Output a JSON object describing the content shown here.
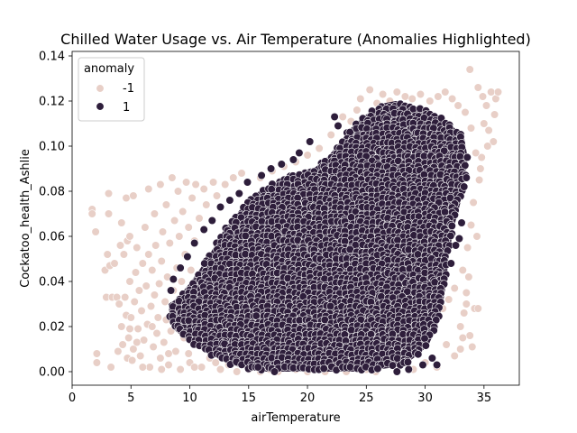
{
  "chart_data": {
    "type": "scatter",
    "title": "Chilled Water Usage vs. Air Temperature (Anomalies Highlighted)",
    "xlabel": "airTemperature",
    "ylabel": "Cockatoo_health_Ashlie",
    "xlim": [
      0,
      38
    ],
    "ylim": [
      -0.006,
      0.142
    ],
    "xticks": [
      0,
      5,
      10,
      15,
      20,
      25,
      30,
      35
    ],
    "yticks": [
      0.0,
      0.02,
      0.04,
      0.06,
      0.08,
      0.1,
      0.12,
      0.14
    ],
    "xtick_labels": [
      "0",
      "5",
      "10",
      "15",
      "20",
      "25",
      "30",
      "35"
    ],
    "ytick_labels": [
      "0.00",
      "0.02",
      "0.04",
      "0.06",
      "0.08",
      "0.10",
      "0.12",
      "0.14"
    ],
    "legend": {
      "title": "anomaly",
      "placement": "top-left",
      "entries": [
        {
          "label": "-1",
          "color": "#e8cfc7"
        },
        {
          "label": "1",
          "color": "#2e1e3b"
        }
      ]
    },
    "series": [
      {
        "name": "-1",
        "color": "#e8cfc7",
        "points": [
          [
            1.7,
            0.072
          ],
          [
            1.7,
            0.07
          ],
          [
            2.0,
            0.062
          ],
          [
            2.1,
            0.008
          ],
          [
            2.1,
            0.004
          ],
          [
            2.8,
            0.045
          ],
          [
            2.9,
            0.033
          ],
          [
            3.0,
            0.052
          ],
          [
            3.1,
            0.079
          ],
          [
            3.1,
            0.07
          ],
          [
            3.2,
            0.047
          ],
          [
            3.3,
            0.002
          ],
          [
            3.4,
            0.033
          ],
          [
            3.6,
            0.048
          ],
          [
            3.8,
            0.033
          ],
          [
            3.9,
            0.009
          ],
          [
            4.0,
            0.03
          ],
          [
            4.1,
            0.056
          ],
          [
            4.2,
            0.066
          ],
          [
            4.2,
            0.02
          ],
          [
            4.3,
            0.012
          ],
          [
            4.4,
            0.052
          ],
          [
            4.5,
            0.033
          ],
          [
            4.6,
            0.025
          ],
          [
            4.6,
            0.077
          ],
          [
            4.7,
            0.058
          ],
          [
            4.7,
            0.006
          ],
          [
            4.8,
            0.015
          ],
          [
            4.9,
            0.04
          ],
          [
            4.9,
            0.06
          ],
          [
            5.0,
            0.024
          ],
          [
            5.1,
            0.005
          ],
          [
            5.2,
            0.01
          ],
          [
            5.2,
            0.078
          ],
          [
            5.3,
            0.031
          ],
          [
            5.4,
            0.044
          ],
          [
            5.5,
            0.055
          ],
          [
            5.6,
            0.019
          ],
          [
            5.7,
            0.036
          ],
          [
            5.8,
            0.007
          ],
          [
            5.9,
            0.027
          ],
          [
            6.0,
            0.048
          ],
          [
            6.1,
            0.014
          ],
          [
            6.2,
            0.064
          ],
          [
            6.3,
            0.038
          ],
          [
            6.4,
            0.021
          ],
          [
            6.5,
            0.052
          ],
          [
            6.5,
            0.081
          ],
          [
            6.6,
            0.002
          ],
          [
            6.7,
            0.029
          ],
          [
            6.8,
            0.045
          ],
          [
            6.9,
            0.011
          ],
          [
            7.0,
            0.07
          ],
          [
            7.0,
            0.034
          ],
          [
            7.1,
            0.056
          ],
          [
            7.2,
            0.017
          ],
          [
            7.3,
            0.024
          ],
          [
            7.4,
            0.039
          ],
          [
            7.5,
            0.083
          ],
          [
            7.5,
            0.006
          ],
          [
            7.6,
            0.049
          ],
          [
            7.7,
            0.062
          ],
          [
            7.8,
            0.013
          ],
          [
            7.9,
            0.031
          ],
          [
            8.0,
            0.074
          ],
          [
            8.0,
            0.023
          ],
          [
            8.1,
            0.042
          ],
          [
            8.2,
            0.003
          ],
          [
            8.3,
            0.057
          ],
          [
            8.4,
            0.018
          ],
          [
            8.5,
            0.086
          ],
          [
            8.6,
            0.036
          ],
          [
            8.7,
            0.067
          ],
          [
            8.8,
            0.009
          ],
          [
            8.9,
            0.046
          ],
          [
            9.0,
            0.08
          ],
          [
            9.0,
            0.026
          ],
          [
            9.1,
            0.06
          ],
          [
            9.2,
            0.001
          ],
          [
            9.3,
            0.04
          ],
          [
            9.4,
            0.071
          ],
          [
            9.5,
            0.015
          ],
          [
            9.6,
            0.052
          ],
          [
            9.7,
            0.084
          ],
          [
            9.8,
            0.03
          ],
          [
            9.9,
            0.064
          ],
          [
            10.0,
            0.004
          ],
          [
            10.1,
            0.045
          ],
          [
            10.2,
            0.077
          ],
          [
            10.3,
            0.02
          ],
          [
            10.4,
            0.058
          ],
          [
            10.5,
            0.083
          ],
          [
            10.6,
            0.035
          ],
          [
            10.8,
            0.068
          ],
          [
            11.0,
            0.002
          ],
          [
            11.2,
            0.081
          ],
          [
            11.4,
            0.074
          ],
          [
            11.7,
            0.006
          ],
          [
            12.0,
            0.084
          ],
          [
            12.3,
            0.078
          ],
          [
            12.6,
            0.001
          ],
          [
            13.0,
            0.083
          ],
          [
            13.3,
            0.003
          ],
          [
            13.7,
            0.086
          ],
          [
            14.0,
            0.0
          ],
          [
            14.4,
            0.088
          ],
          [
            15.0,
            0.001
          ],
          [
            15.6,
            0.002
          ],
          [
            16.0,
            0.0
          ],
          [
            16.8,
            0.001
          ],
          [
            17.5,
            0.0
          ],
          [
            18.2,
            0.002
          ],
          [
            19.0,
            0.001
          ],
          [
            20.0,
            0.0
          ],
          [
            20.8,
            0.001
          ],
          [
            21.5,
            0.0
          ],
          [
            22.5,
            0.001
          ],
          [
            23.3,
            0.0
          ],
          [
            24.0,
            0.002
          ],
          [
            25.0,
            0.001
          ],
          [
            25.8,
            0.0
          ],
          [
            26.5,
            0.003
          ],
          [
            27.3,
            0.006
          ],
          [
            28.0,
            0.01
          ],
          [
            28.7,
            0.014
          ],
          [
            29.5,
            0.018
          ],
          [
            30.2,
            0.021
          ],
          [
            30.8,
            0.025
          ],
          [
            31.5,
            0.028
          ],
          [
            32.0,
            0.032
          ],
          [
            32.5,
            0.037
          ],
          [
            33.0,
            0.02
          ],
          [
            33.2,
            0.045
          ],
          [
            33.5,
            0.03
          ],
          [
            33.8,
            0.016
          ],
          [
            34.0,
            0.011
          ],
          [
            34.2,
            0.028
          ],
          [
            34.4,
            0.06
          ],
          [
            34.6,
            0.085
          ],
          [
            34.8,
            0.095
          ],
          [
            35.0,
            0.11
          ],
          [
            35.2,
            0.118
          ],
          [
            35.4,
            0.107
          ],
          [
            35.6,
            0.124
          ],
          [
            35.8,
            0.102
          ],
          [
            36.0,
            0.121
          ],
          [
            36.2,
            0.124
          ],
          [
            33.8,
            0.134
          ],
          [
            34.5,
            0.126
          ],
          [
            35.3,
            0.1
          ],
          [
            35.9,
            0.114
          ],
          [
            34.9,
            0.122
          ],
          [
            24.5,
            0.121
          ],
          [
            25.3,
            0.125
          ],
          [
            25.9,
            0.119
          ],
          [
            26.4,
            0.123
          ],
          [
            27.0,
            0.12
          ],
          [
            27.6,
            0.124
          ],
          [
            28.3,
            0.122
          ],
          [
            28.9,
            0.121
          ],
          [
            29.6,
            0.123
          ],
          [
            30.4,
            0.12
          ],
          [
            31.1,
            0.122
          ],
          [
            31.7,
            0.124
          ],
          [
            32.3,
            0.121
          ],
          [
            32.8,
            0.118
          ],
          [
            33.4,
            0.115
          ],
          [
            33.9,
            0.108
          ],
          [
            34.3,
            0.097
          ],
          [
            34.7,
            0.09
          ],
          [
            34.1,
            0.075
          ],
          [
            33.9,
            0.065
          ],
          [
            33.6,
            0.055
          ],
          [
            33.7,
            0.042
          ],
          [
            33.5,
            0.035
          ],
          [
            33.3,
            0.026
          ],
          [
            31.0,
            0.002
          ],
          [
            32.5,
            0.007
          ],
          [
            31.8,
            0.012
          ],
          [
            30.0,
            0.004
          ],
          [
            29.0,
            0.001
          ],
          [
            33.2,
            0.015
          ],
          [
            34.5,
            0.028
          ],
          [
            33.0,
            0.01
          ],
          [
            16.0,
            0.086
          ],
          [
            17.0,
            0.089
          ],
          [
            18.0,
            0.091
          ],
          [
            19.0,
            0.093
          ],
          [
            20.0,
            0.096
          ],
          [
            21.0,
            0.099
          ],
          [
            22.0,
            0.105
          ],
          [
            23.0,
            0.113
          ],
          [
            23.7,
            0.111
          ],
          [
            24.2,
            0.116
          ],
          [
            12.2,
            0.004
          ],
          [
            12.8,
            0.006
          ],
          [
            11.5,
            0.01
          ],
          [
            10.7,
            0.014
          ],
          [
            9.5,
            0.021
          ],
          [
            8.6,
            0.028
          ],
          [
            8.2,
            0.008
          ],
          [
            7.6,
            0.001
          ],
          [
            6.8,
            0.02
          ],
          [
            6.0,
            0.002
          ],
          [
            5.5,
            0.013
          ],
          [
            4.9,
            0.019
          ],
          [
            9.9,
            0.008
          ],
          [
            10.4,
            0.002
          ]
        ]
      }
    ],
    "dense_region": {
      "name": "1",
      "color": "#2e1e3b",
      "boundary": [
        [
          8.2,
          0.03
        ],
        [
          9.0,
          0.033
        ],
        [
          9.8,
          0.038
        ],
        [
          10.8,
          0.045
        ],
        [
          11.8,
          0.053
        ],
        [
          12.8,
          0.062
        ],
        [
          14.0,
          0.07
        ],
        [
          15.0,
          0.077
        ],
        [
          16.5,
          0.082
        ],
        [
          18.0,
          0.086
        ],
        [
          19.5,
          0.088
        ],
        [
          20.5,
          0.09
        ],
        [
          21.5,
          0.094
        ],
        [
          22.5,
          0.1
        ],
        [
          23.5,
          0.107
        ],
        [
          24.5,
          0.112
        ],
        [
          25.5,
          0.116
        ],
        [
          26.5,
          0.119
        ],
        [
          27.5,
          0.12
        ],
        [
          28.5,
          0.119
        ],
        [
          29.5,
          0.117
        ],
        [
          30.5,
          0.115
        ],
        [
          31.5,
          0.112
        ],
        [
          32.5,
          0.108
        ],
        [
          33.3,
          0.104
        ],
        [
          33.6,
          0.095
        ],
        [
          33.4,
          0.085
        ],
        [
          33.0,
          0.075
        ],
        [
          32.5,
          0.065
        ],
        [
          32.0,
          0.052
        ],
        [
          31.8,
          0.04
        ],
        [
          31.5,
          0.03
        ],
        [
          31.0,
          0.02
        ],
        [
          30.3,
          0.012
        ],
        [
          29.5,
          0.008
        ],
        [
          28.5,
          0.004
        ],
        [
          27.5,
          0.002
        ],
        [
          26.0,
          0.001
        ],
        [
          24.0,
          0.0
        ],
        [
          20.0,
          0.0
        ],
        [
          16.0,
          0.0
        ],
        [
          13.5,
          0.003
        ],
        [
          11.5,
          0.008
        ],
        [
          10.0,
          0.013
        ],
        [
          8.8,
          0.018
        ],
        [
          8.3,
          0.024
        ]
      ]
    },
    "outlier_points_1": [
      [
        22.3,
        0.113
      ],
      [
        22.6,
        0.109
      ],
      [
        20.2,
        0.102
      ],
      [
        19.3,
        0.097
      ],
      [
        18.8,
        0.094
      ],
      [
        17.8,
        0.092
      ],
      [
        16.9,
        0.09
      ],
      [
        16.1,
        0.087
      ],
      [
        14.9,
        0.084
      ],
      [
        14.2,
        0.079
      ],
      [
        13.4,
        0.076
      ],
      [
        12.6,
        0.073
      ],
      [
        11.9,
        0.067
      ],
      [
        11.2,
        0.063
      ],
      [
        10.4,
        0.057
      ],
      [
        9.8,
        0.051
      ],
      [
        9.2,
        0.046
      ],
      [
        8.6,
        0.041
      ],
      [
        8.4,
        0.036
      ],
      [
        33.5,
        0.086
      ],
      [
        33.3,
        0.082
      ],
      [
        32.9,
        0.059
      ],
      [
        33.1,
        0.066
      ],
      [
        32.2,
        0.048
      ],
      [
        32.6,
        0.056
      ],
      [
        31.0,
        0.003
      ],
      [
        30.6,
        0.006
      ],
      [
        29.8,
        0.003
      ],
      [
        28.6,
        0.001
      ],
      [
        27.6,
        0.0
      ],
      [
        17.2,
        0.0
      ],
      [
        15.8,
        0.002
      ]
    ]
  }
}
